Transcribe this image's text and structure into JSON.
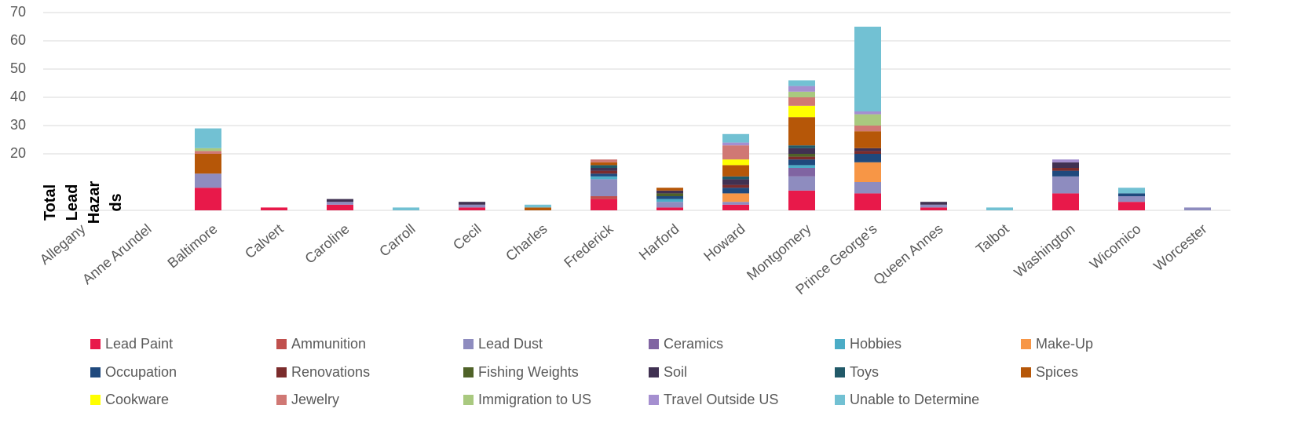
{
  "chart_data": {
    "type": "stacked_bar",
    "y_label": "Total Lead Hazards",
    "categories": [
      "Allegany",
      "Anne Arundel",
      "Baltimore",
      "Calvert",
      "Caroline",
      "Carroll",
      "Cecil",
      "Charles",
      "Frederick",
      "Harford",
      "Howard",
      "Montgomery",
      "Prince George's",
      "Queen Annes",
      "Talbot",
      "Washington",
      "Wicomico",
      "Worcester"
    ],
    "ylim": [
      0,
      70
    ],
    "yticks": [
      20,
      30,
      40,
      50,
      60,
      70
    ],
    "grid": true,
    "series": [
      {
        "name": "Lead Paint",
        "color": "#e8194a",
        "values": [
          0,
          0,
          8,
          1,
          2,
          0,
          1,
          0,
          4,
          1,
          2,
          7,
          6,
          1,
          0,
          6,
          3,
          0
        ]
      },
      {
        "name": "Ammunition",
        "color": "#c0504d",
        "values": [
          0,
          0,
          0,
          0,
          0,
          0,
          0,
          0,
          1,
          0,
          0,
          0,
          0,
          0,
          0,
          0,
          0,
          0
        ]
      },
      {
        "name": "Lead Dust",
        "color": "#8e8cbf",
        "values": [
          0,
          0,
          5,
          0,
          1,
          0,
          1,
          0,
          6,
          2,
          1,
          5,
          4,
          1,
          0,
          6,
          2,
          1
        ]
      },
      {
        "name": "Ceramics",
        "color": "#8064a2",
        "values": [
          0,
          0,
          0,
          0,
          0,
          0,
          0,
          0,
          0,
          0,
          0,
          3,
          0,
          0,
          0,
          0,
          0,
          0
        ]
      },
      {
        "name": "Hobbies",
        "color": "#4bacc6",
        "values": [
          0,
          0,
          0,
          0,
          0,
          0,
          0,
          0,
          1,
          1,
          0,
          1,
          0,
          0,
          0,
          0,
          0,
          0
        ]
      },
      {
        "name": "Make-Up",
        "color": "#f79646",
        "values": [
          0,
          0,
          0,
          0,
          0,
          0,
          0,
          0,
          0,
          0,
          3,
          0,
          7,
          0,
          0,
          0,
          0,
          0
        ]
      },
      {
        "name": "Occupation",
        "color": "#1f497d",
        "values": [
          0,
          0,
          0,
          0,
          0,
          0,
          0,
          0,
          1,
          1,
          2,
          2,
          3,
          0,
          0,
          2,
          1,
          0
        ]
      },
      {
        "name": "Renovations",
        "color": "#7b2c2c",
        "values": [
          0,
          0,
          0,
          0,
          0,
          0,
          0,
          0,
          1,
          0,
          1,
          1,
          1,
          0,
          0,
          1,
          0,
          0
        ]
      },
      {
        "name": "Fishing Weights",
        "color": "#4f6228",
        "values": [
          0,
          0,
          0,
          0,
          0,
          0,
          0,
          0,
          0,
          1,
          0,
          1,
          0,
          0,
          0,
          0,
          0,
          0
        ]
      },
      {
        "name": "Soil",
        "color": "#403152",
        "values": [
          0,
          0,
          0,
          0,
          1,
          0,
          1,
          0,
          1,
          1,
          2,
          2,
          1,
          1,
          0,
          2,
          0,
          0
        ]
      },
      {
        "name": "Toys",
        "color": "#215968",
        "values": [
          0,
          0,
          0,
          0,
          0,
          0,
          0,
          0,
          1,
          0,
          1,
          1,
          0,
          0,
          0,
          0,
          0,
          0
        ]
      },
      {
        "name": "Spices",
        "color": "#b65708",
        "values": [
          0,
          0,
          7,
          0,
          0,
          0,
          0,
          1,
          1,
          1,
          4,
          10,
          6,
          0,
          0,
          0,
          0,
          0
        ]
      },
      {
        "name": "Cookware",
        "color": "#ffff00",
        "values": [
          0,
          0,
          0,
          0,
          0,
          0,
          0,
          0,
          0,
          0,
          2,
          4,
          0,
          0,
          0,
          0,
          0,
          0
        ]
      },
      {
        "name": "Jewelry",
        "color": "#d07874",
        "values": [
          0,
          0,
          1,
          0,
          0,
          0,
          0,
          0,
          1,
          0,
          5,
          3,
          2,
          0,
          0,
          0,
          0,
          0
        ]
      },
      {
        "name": "Immigration to US",
        "color": "#a9c97f",
        "values": [
          0,
          0,
          1,
          0,
          0,
          0,
          0,
          0,
          0,
          0,
          0,
          2,
          4,
          0,
          0,
          0,
          0,
          0
        ]
      },
      {
        "name": "Travel Outside US",
        "color": "#a58fd0",
        "values": [
          0,
          0,
          0,
          0,
          0,
          0,
          0,
          0,
          0,
          0,
          1,
          2,
          1,
          0,
          0,
          1,
          0,
          0
        ]
      },
      {
        "name": "Unable to Determine",
        "color": "#72c1d3",
        "values": [
          0,
          0,
          7,
          0,
          0,
          1,
          0,
          1,
          0,
          0,
          3,
          2,
          30,
          0,
          1,
          0,
          2,
          0
        ]
      }
    ]
  }
}
